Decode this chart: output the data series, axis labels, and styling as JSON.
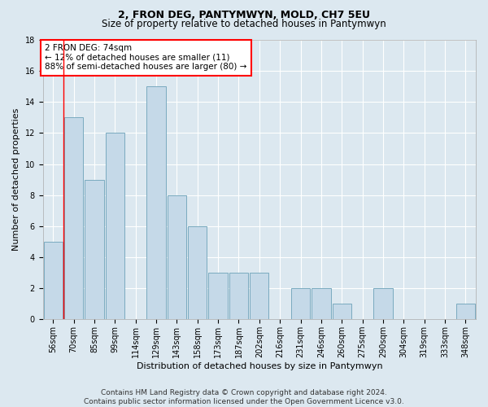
{
  "title_line1": "2, FRON DEG, PANTYMWYN, MOLD, CH7 5EU",
  "title_line2": "Size of property relative to detached houses in Pantymwyn",
  "xlabel": "Distribution of detached houses by size in Pantymwyn",
  "ylabel": "Number of detached properties",
  "categories": [
    "56sqm",
    "70sqm",
    "85sqm",
    "99sqm",
    "114sqm",
    "129sqm",
    "143sqm",
    "158sqm",
    "173sqm",
    "187sqm",
    "202sqm",
    "216sqm",
    "231sqm",
    "246sqm",
    "260sqm",
    "275sqm",
    "290sqm",
    "304sqm",
    "319sqm",
    "333sqm",
    "348sqm"
  ],
  "values": [
    5,
    13,
    9,
    12,
    0,
    15,
    8,
    6,
    3,
    3,
    3,
    0,
    2,
    2,
    1,
    0,
    2,
    0,
    0,
    0,
    1
  ],
  "bar_color": "#c5d9e8",
  "bar_edge_color": "#7aaabf",
  "red_line_x": 0.5,
  "annotation_box_text": "2 FRON DEG: 74sqm\n← 12% of detached houses are smaller (11)\n88% of semi-detached houses are larger (80) →",
  "ylim": [
    0,
    18
  ],
  "yticks": [
    0,
    2,
    4,
    6,
    8,
    10,
    12,
    14,
    16,
    18
  ],
  "footer_line1": "Contains HM Land Registry data © Crown copyright and database right 2024.",
  "footer_line2": "Contains public sector information licensed under the Open Government Licence v3.0.",
  "background_color": "#dce8f0",
  "plot_background_color": "#dce8f0",
  "grid_color": "#ffffff",
  "title_fontsize": 9,
  "subtitle_fontsize": 8.5,
  "axis_label_fontsize": 8,
  "tick_fontsize": 7,
  "annotation_fontsize": 7.5,
  "footer_fontsize": 6.5
}
